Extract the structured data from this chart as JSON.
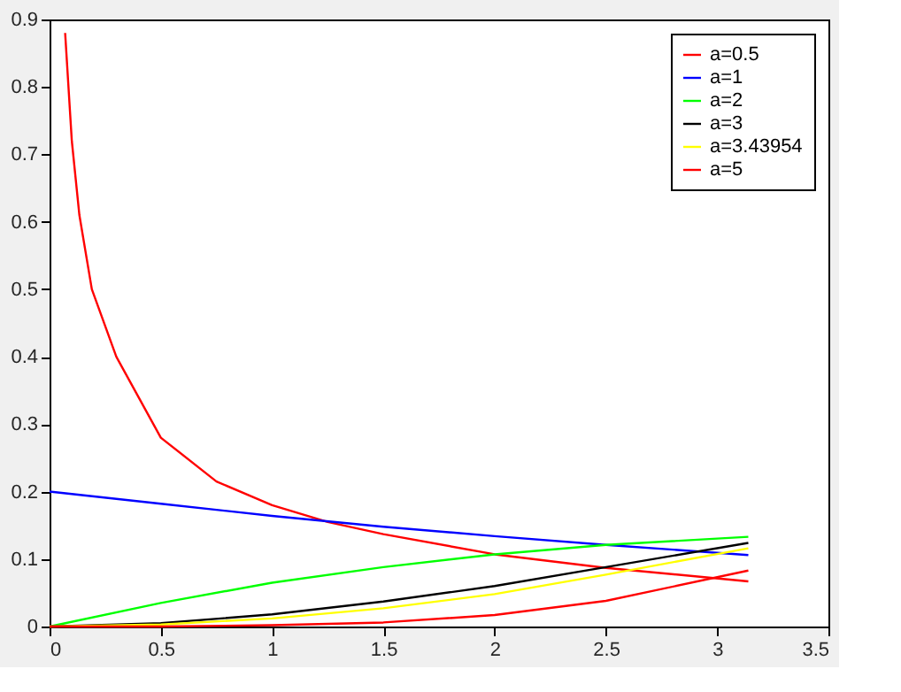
{
  "chart_data": {
    "type": "line",
    "x": [
      0,
      0.5,
      1,
      1.5,
      2,
      2.5,
      3.14
    ],
    "series": [
      {
        "name": "a=0.5",
        "color": "#ff0000",
        "x": [
          0.07,
          0.1,
          0.134,
          0.19,
          0.3,
          0.5,
          0.75,
          1,
          1.25,
          1.5,
          2,
          2.5,
          3.14
        ],
        "values": [
          0.88,
          0.72,
          0.61,
          0.5,
          0.4,
          0.28,
          0.215,
          0.18,
          0.155,
          0.137,
          0.107,
          0.087,
          0.067
        ]
      },
      {
        "name": "a=1",
        "color": "#0000ff",
        "values": [
          0.2,
          0.182,
          0.164,
          0.148,
          0.134,
          0.121,
          0.106
        ]
      },
      {
        "name": "a=2",
        "color": "#00ff00",
        "values": [
          0,
          0.035,
          0.065,
          0.088,
          0.107,
          0.121,
          0.133
        ]
      },
      {
        "name": "a=3",
        "color": "#000000",
        "values": [
          0,
          0.005,
          0.018,
          0.037,
          0.06,
          0.088,
          0.124
        ]
      },
      {
        "name": "a=3.43954",
        "color": "#ffff00",
        "values": [
          0,
          0.003,
          0.012,
          0.027,
          0.048,
          0.077,
          0.116
        ]
      },
      {
        "name": "a=5",
        "color": "#ff0000",
        "values": [
          0,
          0,
          0.002,
          0.006,
          0.017,
          0.038,
          0.083
        ]
      }
    ],
    "xlim": [
      0,
      3.5
    ],
    "xticks": [
      0,
      0.5,
      1,
      1.5,
      2,
      2.5,
      3,
      3.5
    ],
    "ylim": [
      0,
      0.9
    ],
    "yticks": [
      0,
      0.1,
      0.2,
      0.3,
      0.4,
      0.5,
      0.6,
      0.7,
      0.8,
      0.9
    ],
    "grid": false,
    "legend": "top right",
    "marker": "none",
    "line_style": "solid"
  }
}
